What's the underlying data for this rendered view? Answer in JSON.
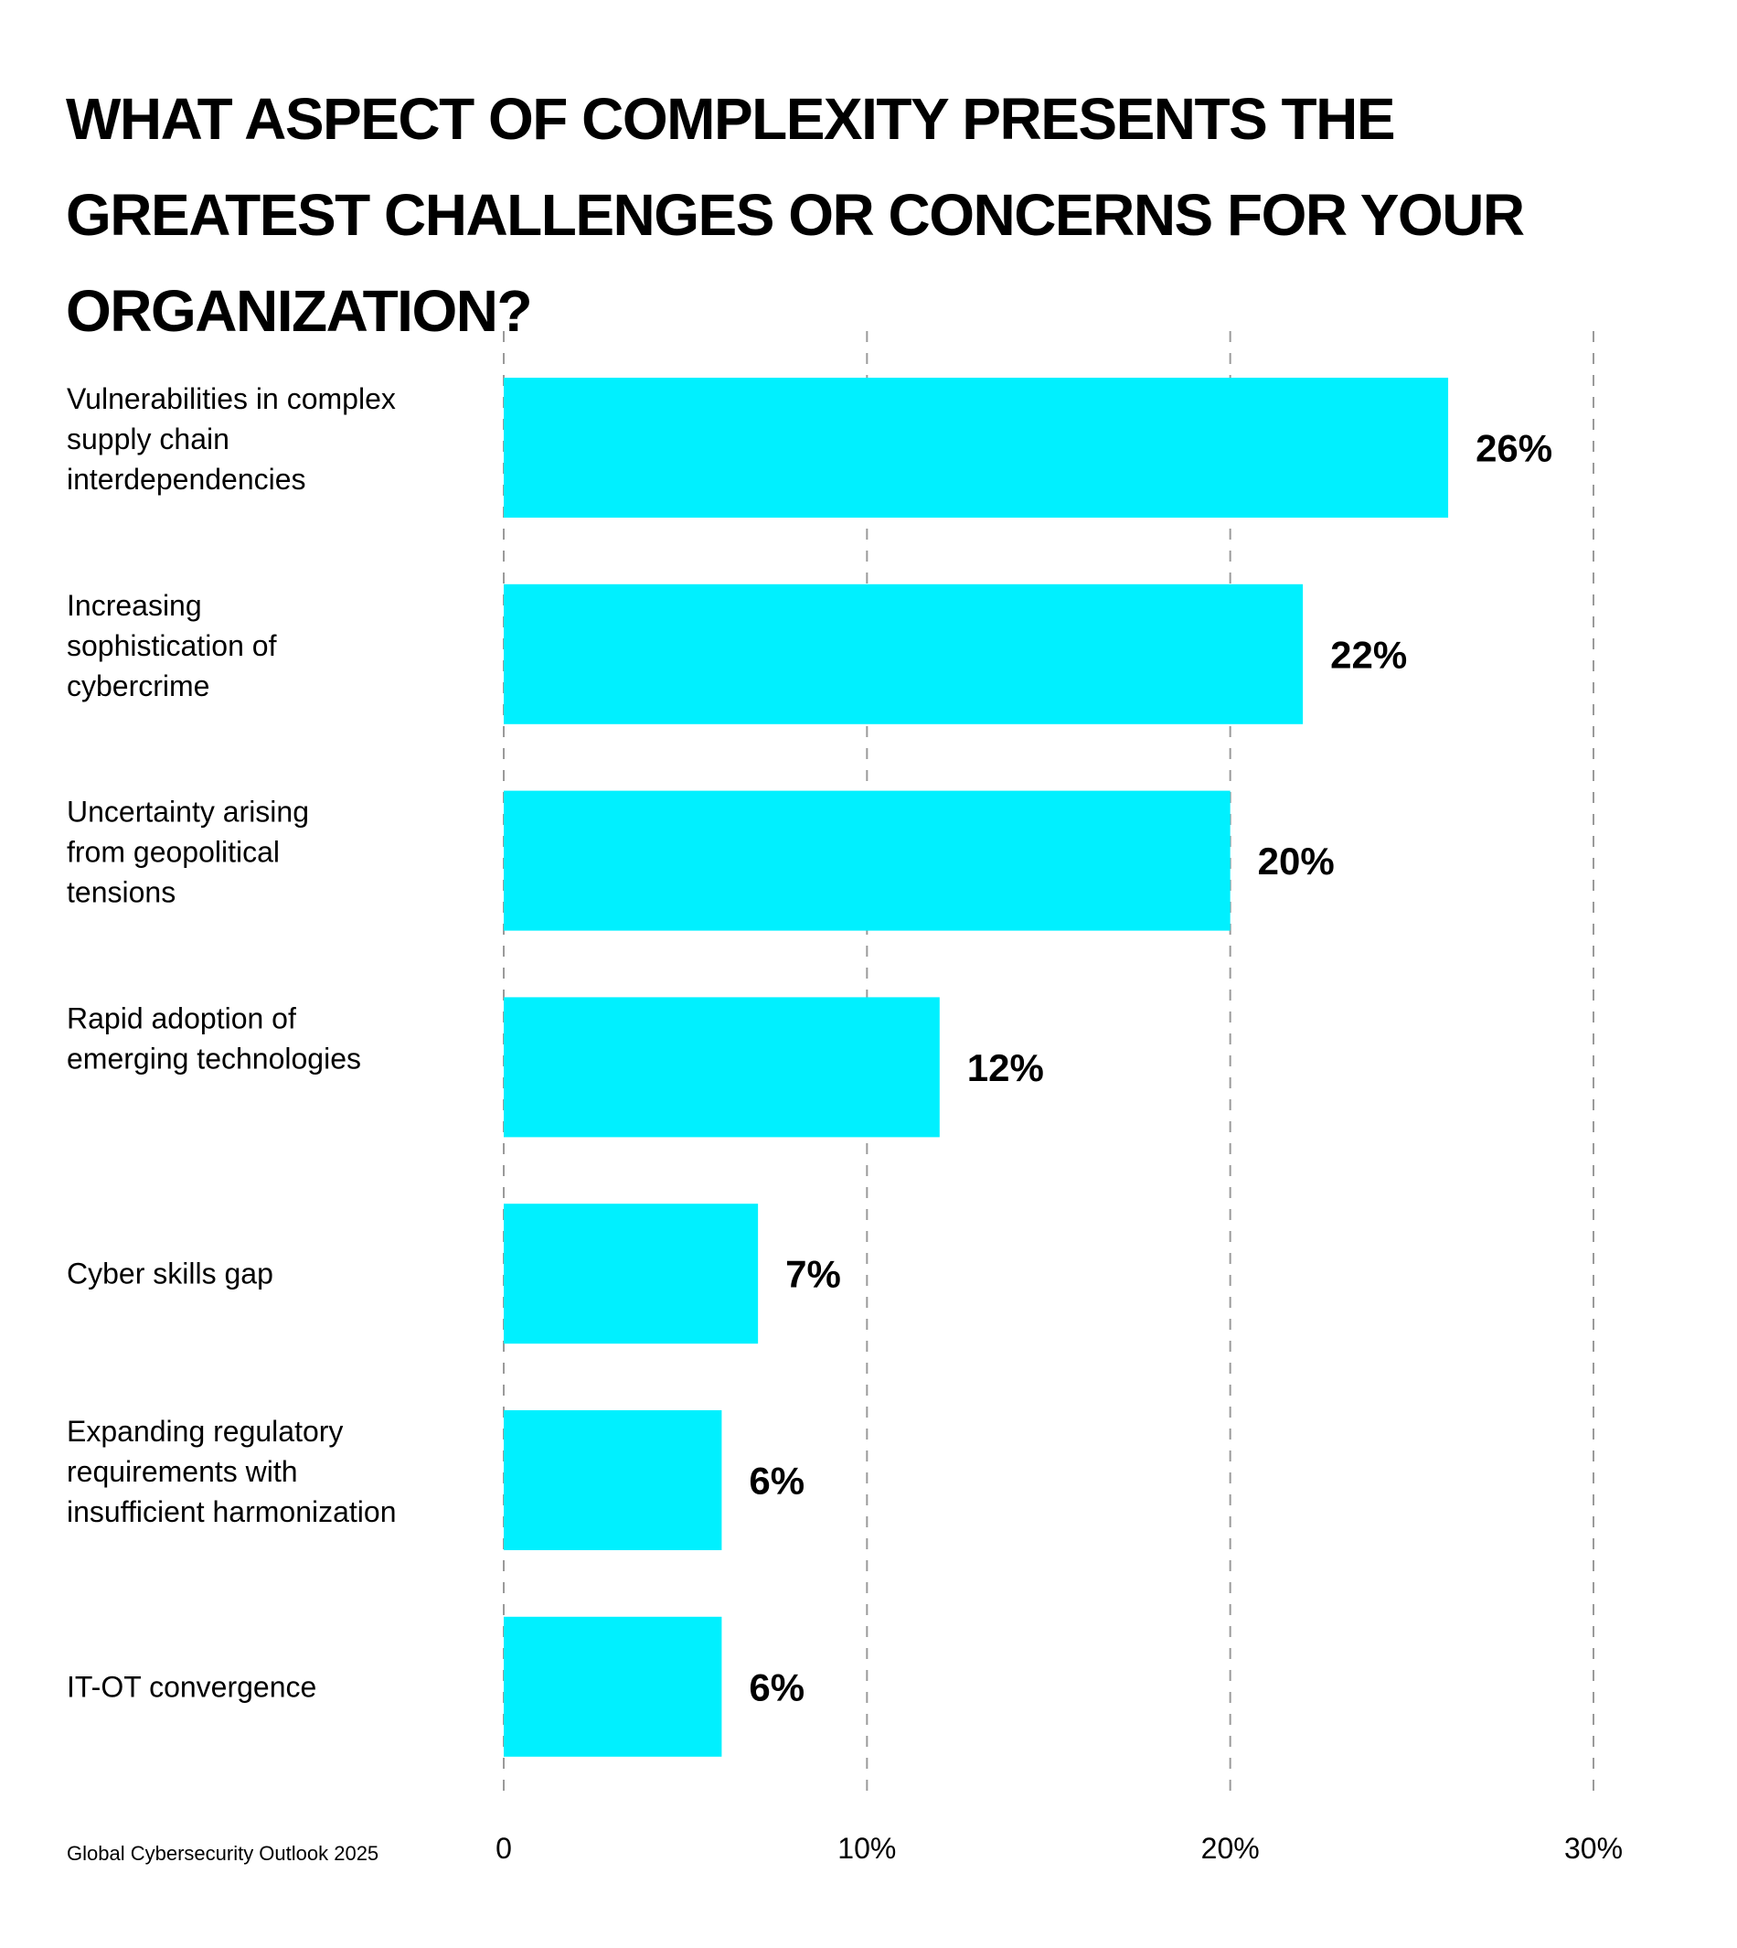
{
  "colors": {
    "bar": "#00F0FF",
    "grid": "#9A9A9A",
    "text": "#000000",
    "background": "#FFFFFF"
  },
  "footer": {
    "source": "Global Cybersecurity Outlook 2025"
  },
  "chart_data": {
    "type": "bar",
    "orientation": "horizontal",
    "title": "WHAT ASPECT OF COMPLEXITY PRESENTS THE GREATEST CHALLENGES OR CONCERNS FOR YOUR ORGANIZATION?",
    "title_lines": [
      "WHAT ASPECT OF COMPLEXITY PRESENTS THE",
      "GREATEST CHALLENGES OR CONCERNS FOR YOUR",
      "ORGANIZATION?"
    ],
    "xlabel": "",
    "ylabel": "",
    "xlim": [
      0,
      30
    ],
    "grid": true,
    "grid_style": "dashed",
    "legend": "none",
    "x_ticks": [
      0,
      10,
      20,
      30
    ],
    "x_tick_labels": [
      "0",
      "10%",
      "20%",
      "30%"
    ],
    "categories": [
      "Vulnerabilities in complex supply chain interdependencies",
      "Increasing sophistication of cybercrime",
      "Uncertainty arising from geopolitical tensions",
      "Rapid adoption of emerging technologies",
      "Cyber skills gap",
      "Expanding regulatory requirements with insufficient harmonization",
      "IT-OT convergence"
    ],
    "category_label_lines": [
      [
        "Vulnerabilities in complex",
        "supply chain",
        "interdependencies"
      ],
      [
        "Increasing",
        "sophistication of",
        "cybercrime"
      ],
      [
        "Uncertainty arising",
        "from geopolitical",
        "tensions"
      ],
      [
        "Rapid adoption of",
        "emerging technologies"
      ],
      [
        "Cyber skills gap"
      ],
      [
        "Expanding regulatory",
        "requirements with",
        "insufficient harmonization"
      ],
      [
        "IT-OT convergence"
      ]
    ],
    "values": [
      26,
      22,
      20,
      12,
      7,
      6,
      6
    ],
    "value_labels": [
      "26%",
      "22%",
      "20%",
      "12%",
      "7%",
      "6%",
      "6%"
    ],
    "bar_extent_estimated": [
      27.0,
      22.5,
      20.0,
      12.9,
      7.7,
      6.3,
      6.7
    ],
    "units": "%"
  }
}
